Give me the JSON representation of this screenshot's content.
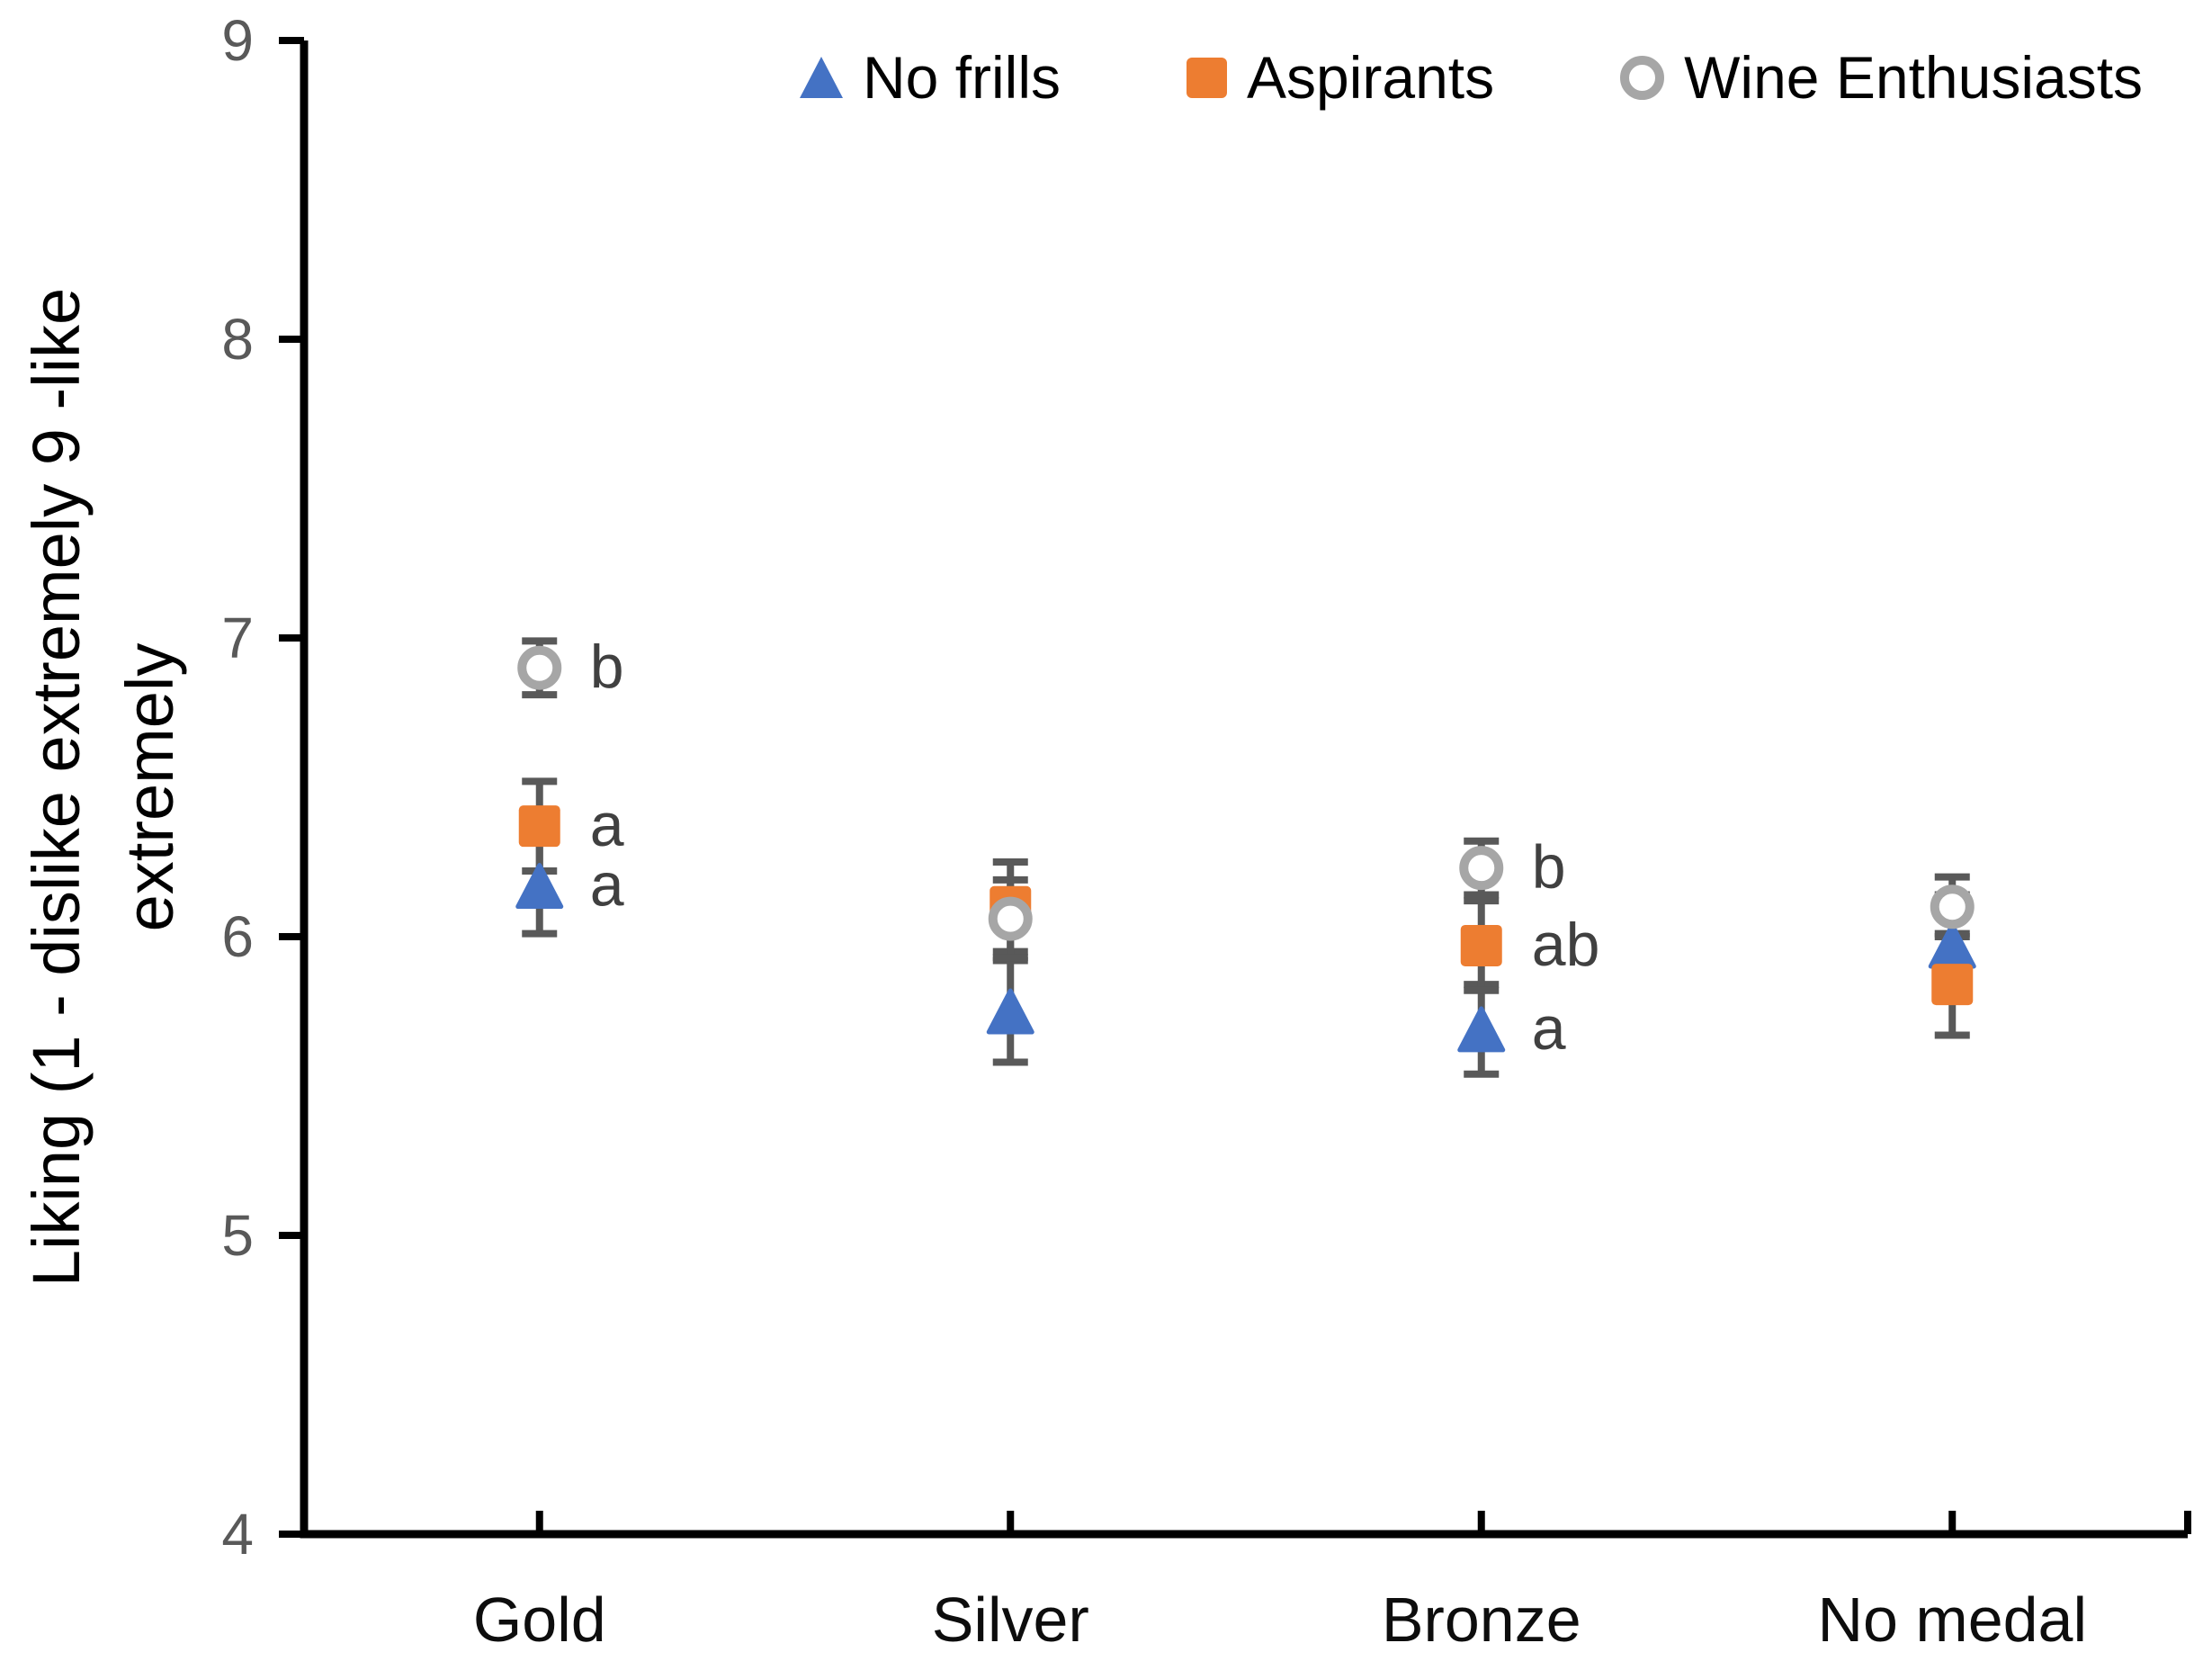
{
  "chart_data": {
    "type": "scatter",
    "title": "",
    "ylabel": "Liking (1 - dislike extremely 9 -like extremely",
    "ylabel_lines": [
      "Liking (1 - dislike extremely 9 -like",
      "extremely"
    ],
    "xlabel": "",
    "ylim": [
      4,
      9
    ],
    "yticks": [
      9,
      8,
      7,
      6,
      5,
      4
    ],
    "grid": false,
    "legend_position": "top",
    "categories": [
      "Gold",
      "Silver",
      "Bronze",
      "No medal"
    ],
    "series": [
      {
        "name": "No frills",
        "marker": "triangle",
        "color": "#4472C4",
        "values": [
          6.17,
          5.75,
          5.69,
          5.97
        ],
        "errors": [
          0.16,
          0.17,
          0.15,
          0.17
        ],
        "letters": [
          "a",
          "",
          "a",
          ""
        ]
      },
      {
        "name": "Aspirants",
        "marker": "square",
        "color": "#ED7D31",
        "values": [
          6.37,
          6.1,
          5.97,
          5.84
        ],
        "errors": [
          0.15,
          0.15,
          0.15,
          0.17
        ],
        "letters": [
          "a",
          "",
          "ab",
          ""
        ]
      },
      {
        "name": "Wine Enthusiasts",
        "marker": "circle-open",
        "color": "#A6A6A6",
        "values": [
          6.9,
          6.06,
          6.23,
          6.1
        ],
        "errors": [
          0.09,
          0.13,
          0.09,
          0.1
        ],
        "letters": [
          "b",
          "",
          "b",
          ""
        ]
      }
    ],
    "error_bar_color": "#595959",
    "letter_color": "#404040",
    "axis_color": "#000000",
    "ytick_label_color": "#595959",
    "xtick_label_color": "#0d0d0d"
  }
}
